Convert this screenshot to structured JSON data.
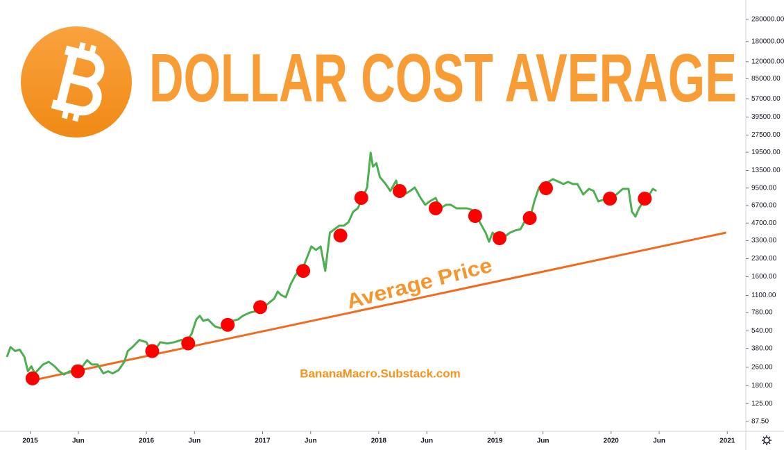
{
  "chart_data": {
    "type": "line",
    "title": "DOLLAR COST AVERAGE",
    "annotation": "BananaMacro.Substack.com",
    "log_scale": true,
    "grid": false,
    "xlim": [
      2014.74,
      2021.16
    ],
    "xticks": [
      2015,
      {
        "value": 2015.414,
        "label": "Jun"
      },
      2016,
      {
        "value": 2016.414,
        "label": "Jun"
      },
      2017,
      {
        "value": 2017.414,
        "label": "Jun"
      },
      2018,
      {
        "value": 2018.414,
        "label": "Jun"
      },
      2019,
      {
        "value": 2019.414,
        "label": "Jun"
      },
      2020,
      {
        "value": 2020.414,
        "label": "Jun"
      },
      2021
    ],
    "ylim": [
      73,
      360000
    ],
    "yticks": [
      {
        "value": 280000,
        "label": "280000.00"
      },
      {
        "value": 180000,
        "label": "180000.00"
      },
      {
        "value": 120000,
        "label": "120000.00"
      },
      {
        "value": 85000,
        "label": "85000.00"
      },
      {
        "value": 57000,
        "label": "57000.00"
      },
      {
        "value": 39500,
        "label": "39500.00"
      },
      {
        "value": 27500,
        "label": "27500.00"
      },
      {
        "value": 19500,
        "label": "19500.00"
      },
      {
        "value": 13500,
        "label": "13500.00"
      },
      {
        "value": 9500,
        "label": "9500.00"
      },
      {
        "value": 6700,
        "label": "6700.00"
      },
      {
        "value": 4700,
        "label": "4700.00"
      },
      {
        "value": 3300,
        "label": "3300.00"
      },
      {
        "value": 2300,
        "label": "2300.00"
      },
      {
        "value": 1600,
        "label": "1600.00"
      },
      {
        "value": 1100,
        "label": "1100.00"
      },
      {
        "value": 780,
        "label": "780.00"
      },
      {
        "value": 540,
        "label": "540.00"
      },
      {
        "value": 380,
        "label": "380.00"
      },
      {
        "value": 260,
        "label": "260.00"
      },
      {
        "value": 180,
        "label": "180.00"
      },
      {
        "value": 125,
        "label": "125.00"
      },
      {
        "value": 87.5,
        "label": "87.50"
      }
    ],
    "series": [
      {
        "type": "line",
        "color": "#4caf50",
        "x": [
          2014.8,
          2014.83,
          2014.87,
          2014.91,
          2014.95,
          2014.98,
          2015.01,
          2015.04,
          2015.11,
          2015.16,
          2015.21,
          2015.25,
          2015.29,
          2015.34,
          2015.4,
          2015.45,
          2015.49,
          2015.53,
          2015.58,
          2015.63,
          2015.67,
          2015.71,
          2015.76,
          2015.81,
          2015.84,
          2015.88,
          2015.94,
          2016.0,
          2016.04,
          2016.09,
          2016.12,
          2016.18,
          2016.24,
          2016.3,
          2016.34,
          2016.39,
          2016.43,
          2016.46,
          2016.49,
          2016.53,
          2016.59,
          2016.64,
          2016.68,
          2016.74,
          2016.79,
          2016.83,
          2016.89,
          2016.94,
          2016.99,
          2017.04,
          2017.1,
          2017.13,
          2017.16,
          2017.2,
          2017.24,
          2017.28,
          2017.31,
          2017.35,
          2017.38,
          2017.42,
          2017.46,
          2017.5,
          2017.54,
          2017.58,
          2017.62,
          2017.66,
          2017.7,
          2017.74,
          2017.78,
          2017.82,
          2017.86,
          2017.9,
          2017.93,
          2017.95,
          2017.98,
          2018.01,
          2018.06,
          2018.1,
          2018.15,
          2018.18,
          2018.22,
          2018.27,
          2018.31,
          2018.36,
          2018.4,
          2018.44,
          2018.49,
          2018.53,
          2018.58,
          2018.62,
          2018.67,
          2018.71,
          2018.76,
          2018.8,
          2018.83,
          2018.87,
          2018.92,
          2018.95,
          2018.98,
          2019.01,
          2019.04,
          2019.09,
          2019.13,
          2019.17,
          2019.22,
          2019.26,
          2019.3,
          2019.34,
          2019.38,
          2019.41,
          2019.46,
          2019.5,
          2019.55,
          2019.59,
          2019.63,
          2019.67,
          2019.71,
          2019.76,
          2019.81,
          2019.85,
          2019.89,
          2019.93,
          2019.97,
          2020.01,
          2020.06,
          2020.1,
          2020.15,
          2020.18,
          2020.21,
          2020.24,
          2020.28,
          2020.33,
          2020.36,
          2020.39
        ],
        "values": [
          320,
          390,
          360,
          370,
          320,
          240,
          265,
          230,
          275,
          290,
          265,
          240,
          225,
          240,
          240,
          265,
          300,
          275,
          275,
          230,
          240,
          230,
          245,
          290,
          360,
          390,
          450,
          430,
          360,
          390,
          430,
          420,
          430,
          450,
          430,
          510,
          680,
          730,
          660,
          680,
          590,
          570,
          630,
          660,
          680,
          730,
          780,
          800,
          860,
          920,
          1030,
          1190,
          1110,
          1060,
          1360,
          1630,
          1800,
          1930,
          2320,
          2940,
          2740,
          2940,
          1800,
          3880,
          4160,
          4460,
          4460,
          4790,
          5890,
          6320,
          7790,
          9600,
          19300,
          14590,
          15630,
          11830,
          10290,
          8950,
          11040,
          8350,
          8350,
          8950,
          9600,
          7790,
          6780,
          7270,
          7790,
          6320,
          6780,
          6780,
          6320,
          6320,
          6320,
          6140,
          5890,
          4790,
          3880,
          3230,
          3880,
          3620,
          3370,
          3620,
          3880,
          4040,
          4160,
          4920,
          5130,
          7270,
          9600,
          10290,
          10740,
          11350,
          10740,
          10290,
          10740,
          10290,
          10290,
          8350,
          9330,
          8950,
          7270,
          7470,
          7790,
          7790,
          8590,
          9330,
          9330,
          5890,
          5350,
          6320,
          7270,
          8350,
          9330,
          8950
        ]
      },
      {
        "type": "scatter",
        "color": "#ff0000",
        "x": [
          2015.02,
          2015.41,
          2016.05,
          2016.36,
          2016.7,
          2016.98,
          2017.35,
          2017.67,
          2017.85,
          2018.18,
          2018.49,
          2018.83,
          2019.04,
          2019.3,
          2019.44,
          2019.99,
          2020.29
        ],
        "values": [
          208,
          240,
          360,
          420,
          610,
          870,
          1800,
          3660,
          7790,
          8950,
          6320,
          5420,
          3470,
          5200,
          9460,
          7680,
          7680
        ]
      },
      {
        "type": "line",
        "name": "Average Price",
        "color": "#f26a1b",
        "x": [
          2015.02,
          2020.99
        ],
        "values": [
          200,
          3880
        ]
      }
    ]
  }
}
